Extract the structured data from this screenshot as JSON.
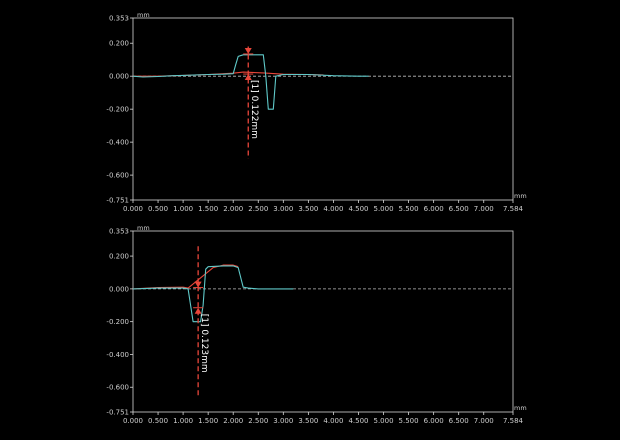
{
  "chart_data": [
    {
      "type": "line",
      "x_unit": "mm",
      "y_unit": "mm",
      "xlim": [
        0,
        7.584
      ],
      "ylim": [
        -0.751,
        0.353
      ],
      "x_ticks": [
        "0.000",
        "0.500",
        "1.000",
        "1.500",
        "2.000",
        "2.500",
        "3.000",
        "3.500",
        "4.000",
        "4.500",
        "5.000",
        "5.500",
        "6.000",
        "6.500",
        "7.000",
        "7.584"
      ],
      "y_ticks": [
        "0.353",
        "0.200",
        "0.000",
        "-0.200",
        "-0.400",
        "-0.600",
        "-0.751"
      ],
      "grid": false,
      "zero_line": "dashed",
      "series": [
        {
          "color": "#5fc9c9",
          "x": [
            0.0,
            0.2,
            0.5,
            0.8,
            1.0,
            1.5,
            1.8,
            2.0,
            2.05,
            2.1,
            2.2,
            2.5,
            2.6,
            2.65,
            2.7,
            2.8,
            2.85,
            3.0,
            3.5,
            4.0,
            4.5,
            4.7
          ],
          "y": [
            0.0,
            -0.005,
            -0.002,
            0.003,
            0.005,
            0.01,
            0.012,
            0.015,
            0.07,
            0.12,
            0.13,
            0.13,
            0.13,
            0.0,
            -0.2,
            -0.2,
            0.0,
            0.01,
            0.01,
            0.003,
            0.0,
            0.0
          ]
        },
        {
          "color": "#e8463a",
          "x": [
            0.0,
            0.5,
            1.0,
            1.5,
            2.0,
            2.2,
            2.6,
            3.0,
            3.5,
            3.8
          ],
          "y": [
            0.0,
            0.0,
            0.005,
            0.01,
            0.018,
            0.025,
            0.02,
            0.012,
            0.01,
            0.008
          ]
        }
      ],
      "measure": {
        "x": 2.3,
        "y_top": 0.135,
        "y_bottom": 0.013,
        "line_extent": [
          0.18,
          -0.5
        ],
        "label": "[1] 0.122mm",
        "color": "#e8463a"
      }
    },
    {
      "type": "line",
      "x_unit": "mm",
      "y_unit": "mm",
      "xlim": [
        0,
        7.584
      ],
      "ylim": [
        -0.751,
        0.353
      ],
      "x_ticks": [
        "0.000",
        "0.500",
        "1.000",
        "1.500",
        "2.000",
        "2.500",
        "3.000",
        "3.500",
        "4.000",
        "4.500",
        "5.000",
        "5.500",
        "6.000",
        "6.500",
        "7.000",
        "7.584"
      ],
      "y_ticks": [
        "0.353",
        "0.200",
        "0.000",
        "-0.200",
        "-0.400",
        "-0.600",
        "-0.751"
      ],
      "grid": false,
      "zero_line": "dashed",
      "series": [
        {
          "color": "#5fc9c9",
          "x": [
            0.0,
            0.5,
            1.0,
            1.1,
            1.15,
            1.2,
            1.35,
            1.4,
            1.45,
            1.5,
            1.8,
            2.0,
            2.1,
            2.2,
            2.3,
            2.5,
            2.8,
            3.0,
            3.2
          ],
          "y": [
            0.0,
            0.005,
            0.005,
            0.0,
            -0.1,
            -0.2,
            -0.2,
            -0.1,
            0.12,
            0.135,
            0.14,
            0.14,
            0.13,
            0.01,
            0.005,
            0.0,
            0.0,
            0.0,
            0.0
          ]
        },
        {
          "color": "#e8463a",
          "x": [
            0.0,
            0.5,
            1.0,
            1.1,
            1.6,
            1.8,
            2.0,
            2.1
          ],
          "y": [
            0.0,
            0.008,
            0.01,
            0.005,
            0.13,
            0.145,
            0.145,
            0.135
          ]
        }
      ],
      "measure": {
        "x": 1.3,
        "y_top": 0.008,
        "y_bottom": -0.115,
        "line_extent": [
          0.26,
          -0.65
        ],
        "label": "[1] 0.123mm",
        "color": "#e8463a"
      }
    }
  ]
}
